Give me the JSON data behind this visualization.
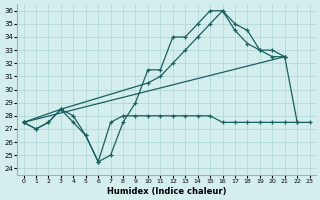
{
  "xlabel": "Humidex (Indice chaleur)",
  "ylim": [
    23.5,
    36.5
  ],
  "xlim": [
    -0.5,
    23.5
  ],
  "yticks": [
    24,
    25,
    26,
    27,
    28,
    29,
    30,
    31,
    32,
    33,
    34,
    35,
    36
  ],
  "xticks": [
    0,
    1,
    2,
    3,
    4,
    5,
    6,
    7,
    8,
    9,
    10,
    11,
    12,
    13,
    14,
    15,
    16,
    17,
    18,
    19,
    20,
    21,
    22,
    23
  ],
  "line_color": "#1a5f5f",
  "bg_color": "#d4eeee",
  "grid_color": "#b0d4d4",
  "lines": {
    "zigzag": {
      "x": [
        0,
        1,
        2,
        3,
        4,
        5,
        6,
        7,
        8,
        9,
        10,
        11,
        12,
        13,
        14,
        15,
        16,
        17,
        18,
        19,
        20,
        21
      ],
      "y": [
        27.5,
        27.0,
        27.5,
        28.5,
        27.5,
        26.5,
        24.5,
        25.0,
        27.5,
        29.0,
        31.5,
        31.5,
        34.0,
        34.0,
        35.0,
        36.0,
        36.0,
        35.0,
        34.5,
        33.0,
        32.5,
        32.5
      ]
    },
    "smooth_upper": {
      "x": [
        0,
        3,
        10,
        11,
        12,
        13,
        14,
        15,
        16,
        17,
        18,
        19,
        20,
        21
      ],
      "y": [
        27.5,
        28.5,
        30.5,
        31.0,
        32.0,
        33.0,
        34.0,
        35.0,
        36.0,
        34.5,
        33.5,
        33.0,
        33.0,
        32.5
      ]
    },
    "straight_diag": {
      "x": [
        0,
        21,
        22
      ],
      "y": [
        27.5,
        32.5,
        27.5
      ]
    },
    "flat_bottom": {
      "x": [
        0,
        1,
        2,
        3,
        4,
        5,
        6,
        7,
        8,
        9,
        10,
        11,
        12,
        13,
        14,
        15,
        16,
        17,
        18,
        19,
        20,
        21,
        22,
        23
      ],
      "y": [
        27.5,
        27.0,
        27.5,
        28.5,
        28.0,
        26.5,
        24.5,
        27.5,
        28.0,
        28.0,
        28.0,
        28.0,
        28.0,
        28.0,
        28.0,
        28.0,
        27.5,
        27.5,
        27.5,
        27.5,
        27.5,
        27.5,
        27.5,
        27.5
      ]
    }
  }
}
